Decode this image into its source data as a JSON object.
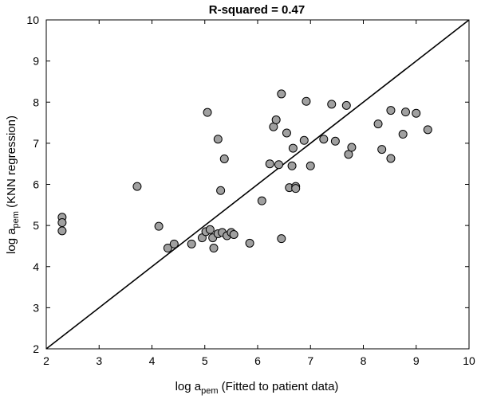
{
  "chart_data": {
    "type": "scatter",
    "title": "R-squared = 0.47",
    "xlabel": {
      "prefix": "log a",
      "subscript": "pem",
      "suffix": " (Fitted to patient data)"
    },
    "ylabel": {
      "prefix": "log a",
      "subscript": "pem",
      "suffix": " (KNN regression)"
    },
    "xlim": [
      2,
      10
    ],
    "ylim": [
      2,
      10
    ],
    "xticks": [
      2,
      3,
      4,
      5,
      6,
      7,
      8,
      9,
      10
    ],
    "yticks": [
      2,
      3,
      4,
      5,
      6,
      7,
      8,
      9,
      10
    ],
    "grid": false,
    "reference_line": {
      "from": [
        2,
        2
      ],
      "to": [
        10,
        10
      ]
    },
    "marker_color": "#a0a0a0",
    "marker_edge_color": "#000000",
    "points": [
      {
        "x": 2.3,
        "y": 5.2
      },
      {
        "x": 2.3,
        "y": 5.07
      },
      {
        "x": 2.3,
        "y": 4.87
      },
      {
        "x": 3.72,
        "y": 5.95
      },
      {
        "x": 4.13,
        "y": 4.98
      },
      {
        "x": 4.3,
        "y": 4.45
      },
      {
        "x": 4.42,
        "y": 4.55
      },
      {
        "x": 4.75,
        "y": 4.55
      },
      {
        "x": 4.95,
        "y": 4.7
      },
      {
        "x": 5.02,
        "y": 4.85
      },
      {
        "x": 5.05,
        "y": 7.75
      },
      {
        "x": 5.1,
        "y": 4.9
      },
      {
        "x": 5.15,
        "y": 4.7
      },
      {
        "x": 5.17,
        "y": 4.45
      },
      {
        "x": 5.25,
        "y": 4.8
      },
      {
        "x": 5.25,
        "y": 7.1
      },
      {
        "x": 5.3,
        "y": 5.85
      },
      {
        "x": 5.33,
        "y": 4.83
      },
      {
        "x": 5.37,
        "y": 6.62
      },
      {
        "x": 5.42,
        "y": 4.75
      },
      {
        "x": 5.5,
        "y": 4.83
      },
      {
        "x": 5.55,
        "y": 4.78
      },
      {
        "x": 5.85,
        "y": 4.57
      },
      {
        "x": 6.08,
        "y": 5.6
      },
      {
        "x": 6.23,
        "y": 6.5
      },
      {
        "x": 6.3,
        "y": 7.4
      },
      {
        "x": 6.35,
        "y": 7.57
      },
      {
        "x": 6.4,
        "y": 6.48
      },
      {
        "x": 6.45,
        "y": 8.2
      },
      {
        "x": 6.45,
        "y": 4.68
      },
      {
        "x": 6.55,
        "y": 7.25
      },
      {
        "x": 6.6,
        "y": 5.92
      },
      {
        "x": 6.65,
        "y": 6.45
      },
      {
        "x": 6.67,
        "y": 6.88
      },
      {
        "x": 6.72,
        "y": 5.95
      },
      {
        "x": 6.72,
        "y": 5.9
      },
      {
        "x": 6.88,
        "y": 7.07
      },
      {
        "x": 6.92,
        "y": 8.02
      },
      {
        "x": 7.0,
        "y": 6.45
      },
      {
        "x": 7.25,
        "y": 7.1
      },
      {
        "x": 7.4,
        "y": 7.95
      },
      {
        "x": 7.47,
        "y": 7.05
      },
      {
        "x": 7.68,
        "y": 7.92
      },
      {
        "x": 7.72,
        "y": 6.73
      },
      {
        "x": 7.78,
        "y": 6.9
      },
      {
        "x": 8.28,
        "y": 7.47
      },
      {
        "x": 8.35,
        "y": 6.85
      },
      {
        "x": 8.52,
        "y": 7.8
      },
      {
        "x": 8.52,
        "y": 6.63
      },
      {
        "x": 8.75,
        "y": 7.22
      },
      {
        "x": 8.8,
        "y": 7.76
      },
      {
        "x": 9.0,
        "y": 7.73
      },
      {
        "x": 9.22,
        "y": 7.33
      }
    ]
  }
}
